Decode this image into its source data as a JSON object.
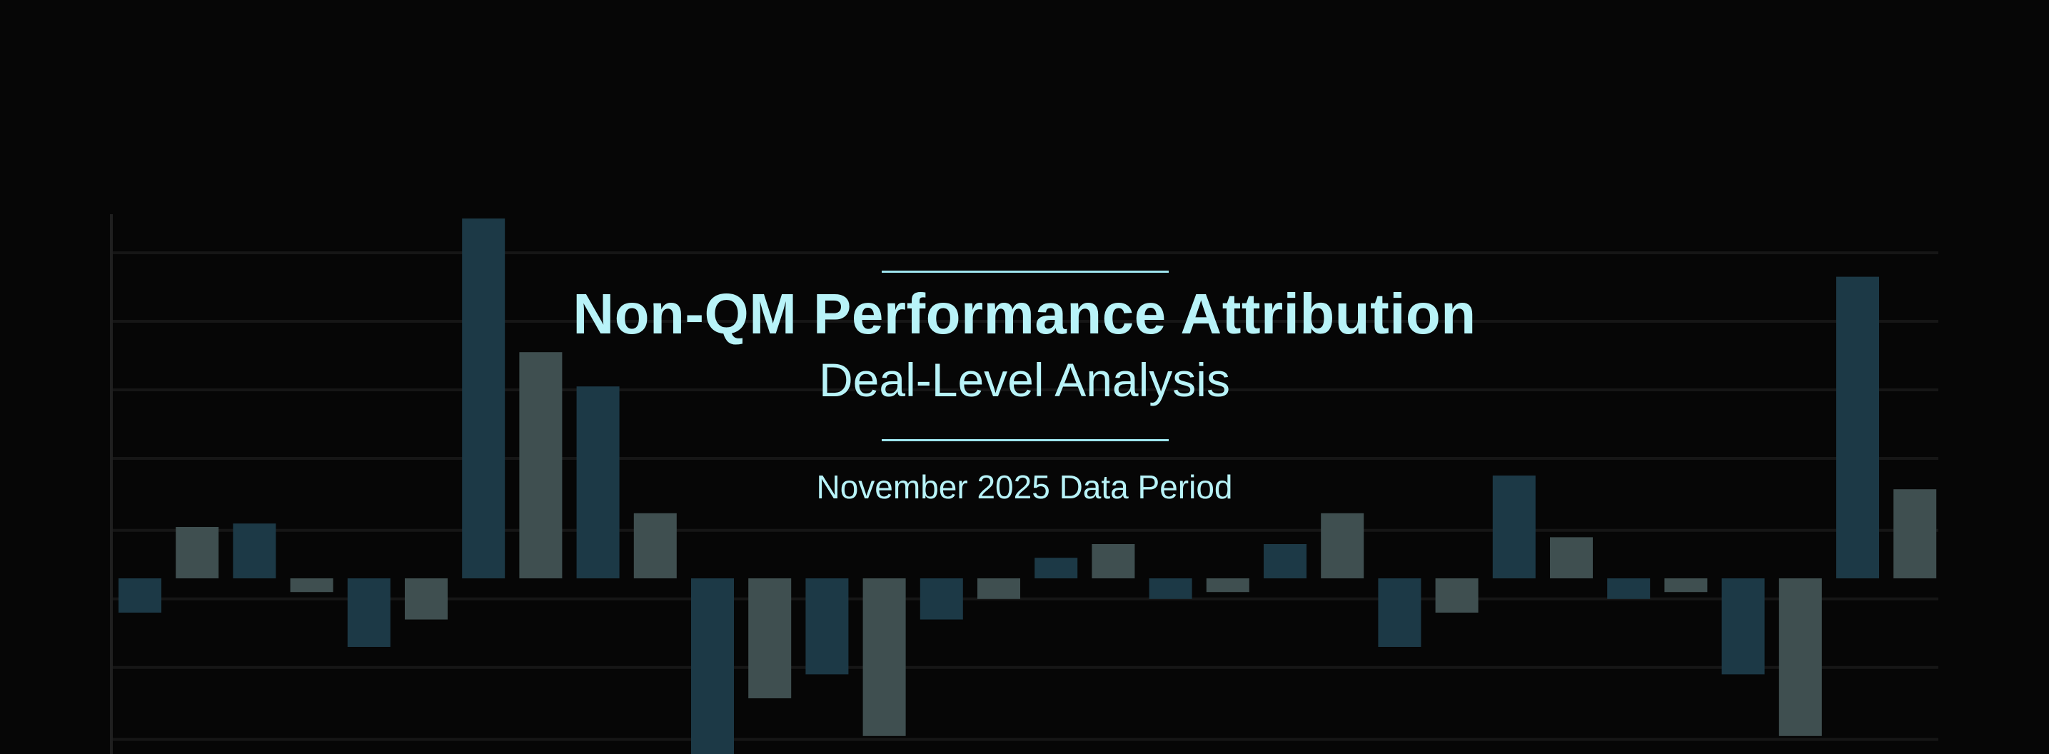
{
  "header": {
    "title": "Non-QM Performance Attribution",
    "subtitle": "Deal-Level Analysis",
    "period": "November 2025 Data Period"
  },
  "colors": {
    "background": "#060606",
    "bar_a": "#1c3946",
    "bar_b": "#3f4f50",
    "grid": "#161616",
    "text": "#b8f3f8"
  },
  "chart_data": {
    "type": "bar",
    "grid": true,
    "ylim": [
      -5.2,
      10.5
    ],
    "gridlines": [
      -4.7,
      -2.6,
      -0.6,
      1.4,
      3.5,
      5.5,
      7.5,
      9.5
    ],
    "values": [
      -1.0,
      1.5,
      1.6,
      -0.4,
      -2.0,
      -1.2,
      10.5,
      6.6,
      5.6,
      1.9,
      -5.2,
      -3.5,
      -2.8,
      -4.6,
      -1.2,
      -0.6,
      0.6,
      1.0,
      -0.6,
      -0.4,
      1.0,
      1.9,
      -2.0,
      -1.0,
      3.0,
      1.2,
      -0.6,
      -0.4,
      -2.8,
      -4.6,
      8.8,
      2.6
    ]
  }
}
